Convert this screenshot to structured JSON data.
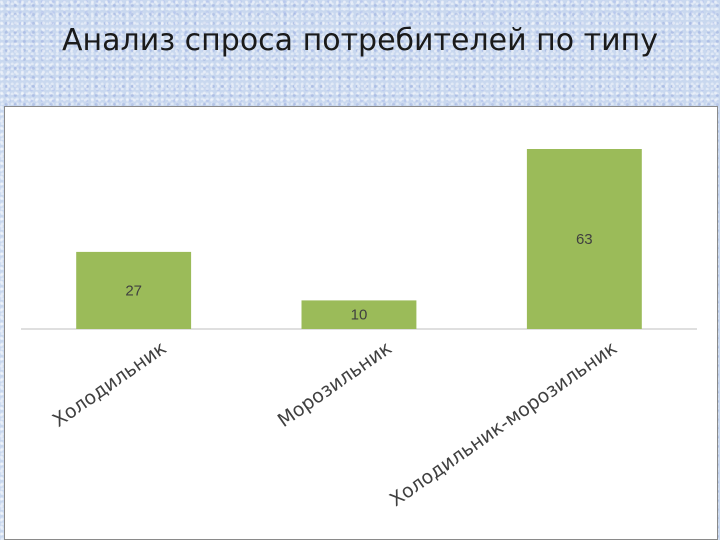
{
  "slide": {
    "title": "Анализ спроса потребителей по типу"
  },
  "chart_data": {
    "type": "bar",
    "title": "",
    "xlabel": "",
    "ylabel": "",
    "categories": [
      "Холодильник",
      "Морозильник",
      "Холодильник-морозильник"
    ],
    "values": [
      27,
      10,
      63
    ],
    "ylim": [
      0,
      63
    ],
    "grid": false,
    "legend": "none",
    "bar_color": "#9bbb59",
    "data_labels": true
  }
}
